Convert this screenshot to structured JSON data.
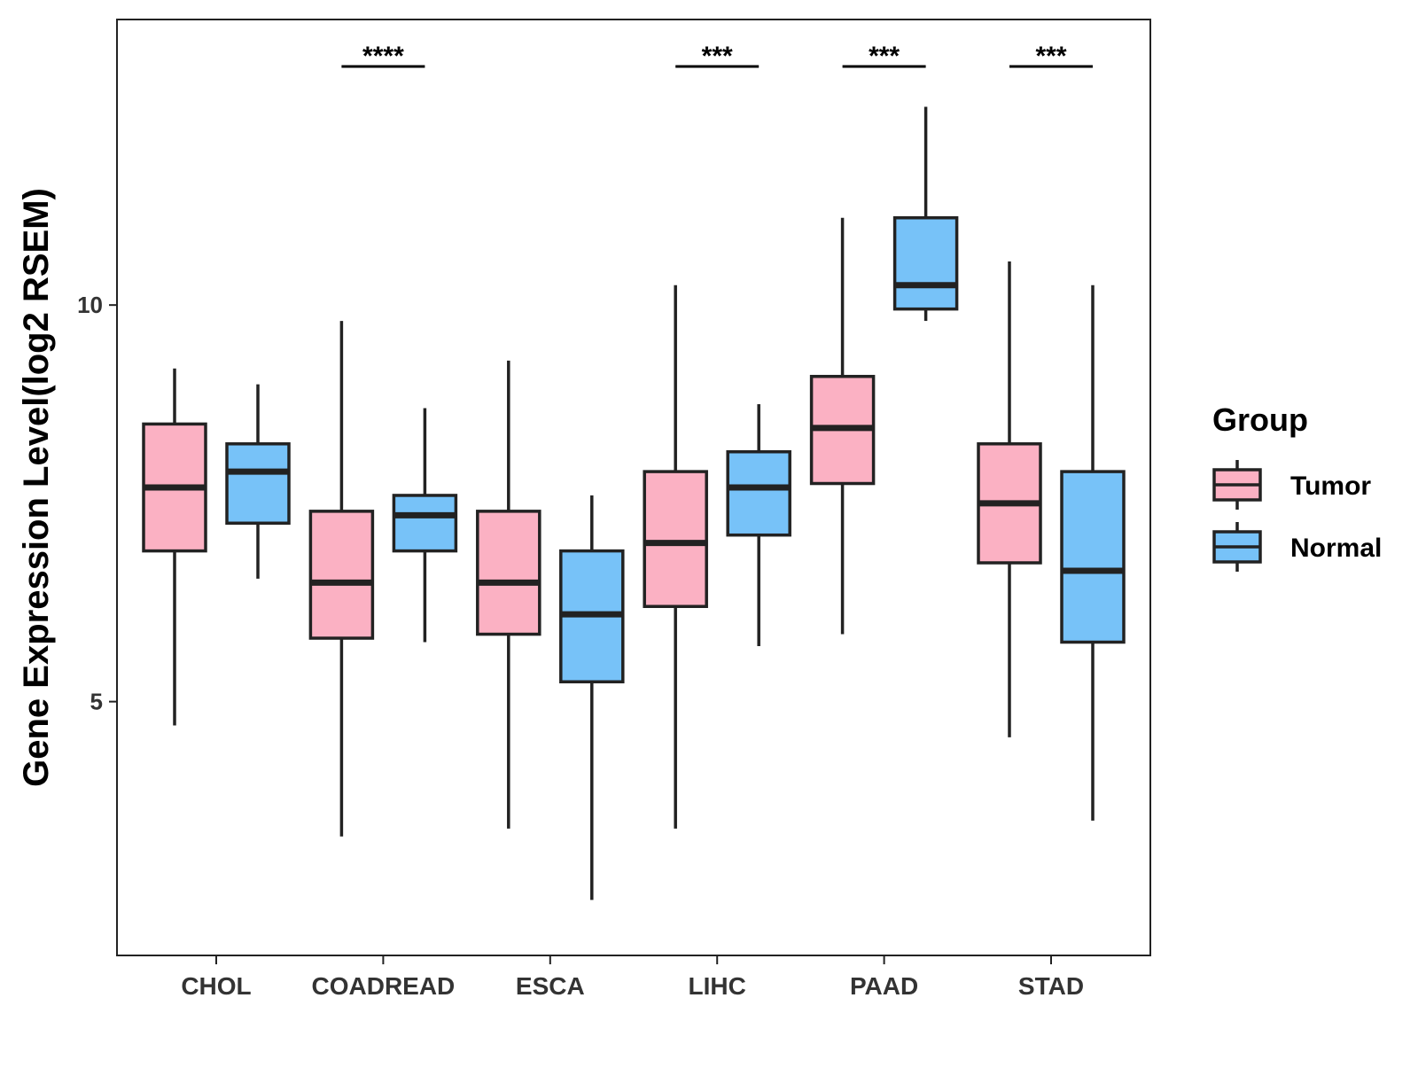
{
  "chart_data": {
    "type": "boxplot",
    "ylabel": "Gene Expression Level(log2 RSEM)",
    "xlabel": "",
    "ylim": [
      1.8,
      13.6
    ],
    "yticks": [
      5,
      10
    ],
    "categories": [
      "CHOL",
      "COADREAD",
      "ESCA",
      "LIHC",
      "PAAD",
      "STAD"
    ],
    "series": [
      {
        "name": "Tumor",
        "color": "#FBB1C3",
        "boxes": [
          {
            "min": 4.7,
            "q1": 6.9,
            "median": 7.7,
            "q3": 8.5,
            "max": 9.2
          },
          {
            "min": 3.3,
            "q1": 5.8,
            "median": 6.5,
            "q3": 7.4,
            "max": 9.8
          },
          {
            "min": 3.4,
            "q1": 5.85,
            "median": 6.5,
            "q3": 7.4,
            "max": 9.3
          },
          {
            "min": 3.4,
            "q1": 6.2,
            "median": 7.0,
            "q3": 7.9,
            "max": 10.25
          },
          {
            "min": 5.85,
            "q1": 7.75,
            "median": 8.45,
            "q3": 9.1,
            "max": 11.1
          },
          {
            "min": 4.55,
            "q1": 6.75,
            "median": 7.5,
            "q3": 8.25,
            "max": 10.55
          }
        ]
      },
      {
        "name": "Normal",
        "color": "#77C2F8",
        "boxes": [
          {
            "min": 6.55,
            "q1": 7.25,
            "median": 7.9,
            "q3": 8.25,
            "max": 9.0
          },
          {
            "min": 5.75,
            "q1": 6.9,
            "median": 7.35,
            "q3": 7.6,
            "max": 8.7
          },
          {
            "min": 2.5,
            "q1": 5.25,
            "median": 6.1,
            "q3": 6.9,
            "max": 7.6
          },
          {
            "min": 5.7,
            "q1": 7.1,
            "median": 7.7,
            "q3": 8.15,
            "max": 8.75
          },
          {
            "min": 9.8,
            "q1": 9.95,
            "median": 10.25,
            "q3": 11.1,
            "max": 12.5
          },
          {
            "min": 3.5,
            "q1": 5.75,
            "median": 6.65,
            "q3": 7.9,
            "max": 10.25
          }
        ]
      }
    ],
    "significance": [
      {
        "category": "COADREAD",
        "label": "****"
      },
      {
        "category": "LIHC",
        "label": "***"
      },
      {
        "category": "PAAD",
        "label": "***"
      },
      {
        "category": "STAD",
        "label": "***"
      }
    ],
    "legend": {
      "title": "Group",
      "position": "right",
      "entries": [
        "Tumor",
        "Normal"
      ]
    },
    "grid": false
  }
}
